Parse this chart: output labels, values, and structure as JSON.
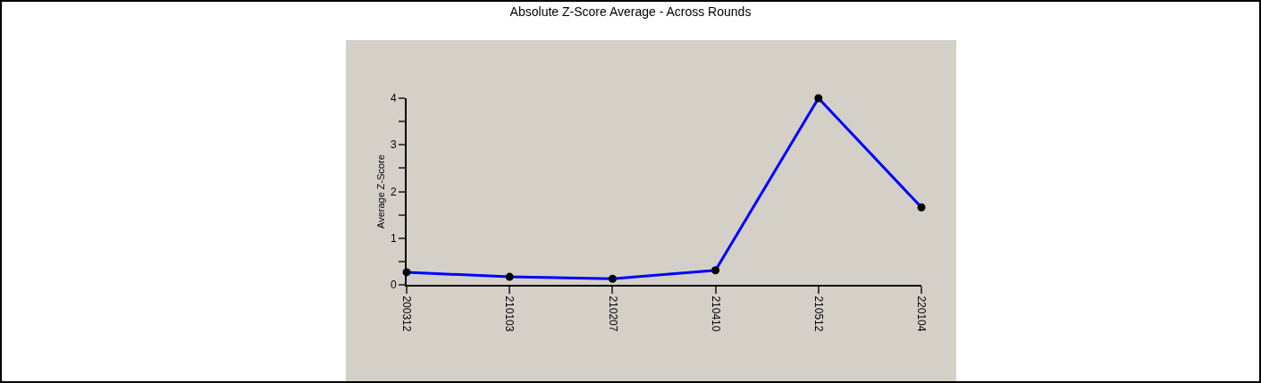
{
  "chart_data": {
    "type": "line",
    "title": "Absolute Z-Score Average - Across Rounds",
    "ylabel": "Average Z-Score",
    "categories": [
      "200312",
      "210103",
      "210207",
      "210410",
      "210512",
      "220104"
    ],
    "series": [
      {
        "color": "#0000ff",
        "values": [
          0.27,
          0.17,
          0.13,
          0.31,
          4.0,
          1.66
        ]
      }
    ],
    "ylim": [
      0,
      4
    ],
    "yticks": [
      0,
      {
        "value": 0.5,
        "label": null
      },
      1,
      {
        "value": 1.5,
        "label": null
      },
      2,
      {
        "value": 2.5,
        "label": null
      },
      3,
      {
        "value": 3.5,
        "label": null
      },
      4
    ],
    "grid": false,
    "marker": "circle",
    "line_style": "solid"
  }
}
